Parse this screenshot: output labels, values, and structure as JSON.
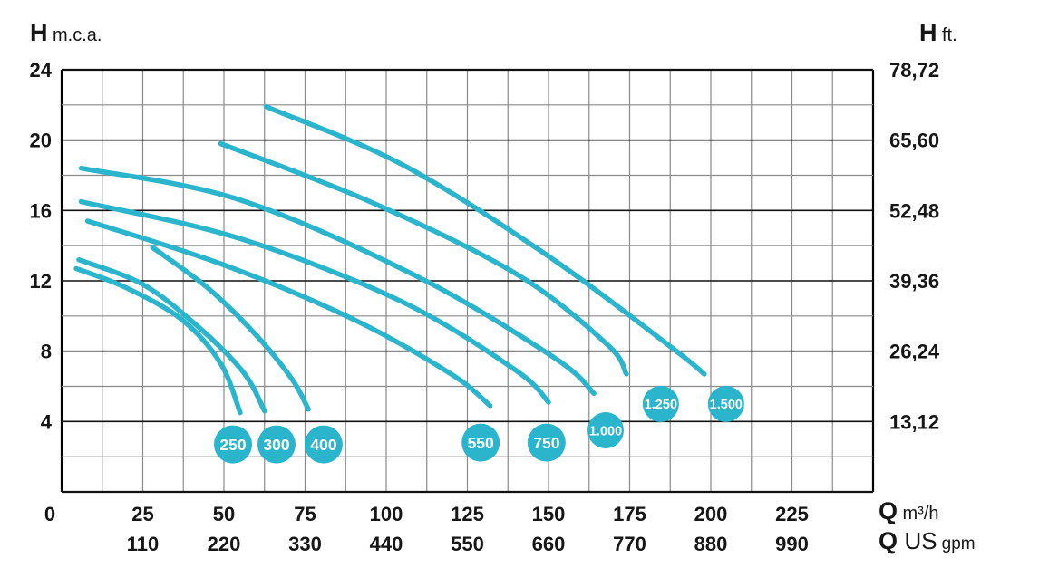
{
  "titles": {
    "left": {
      "symbol": "H",
      "unit": "m.c.a."
    },
    "right": {
      "symbol": "H",
      "unit": "ft."
    },
    "x_primary": {
      "symbol": "Q",
      "unit": "m³/h"
    },
    "x_secondary": {
      "symbol": "Q",
      "unit_main": "US",
      "unit_sub": "gpm"
    }
  },
  "chart_data": {
    "type": "line",
    "title": "",
    "xlabel": "Q (m³/h / US gpm)",
    "ylabel_left": "H (m.c.a.)",
    "ylabel_right": "H (ft.)",
    "xlim": [
      0,
      250
    ],
    "ylim": [
      0,
      24
    ],
    "grid": {
      "on": true,
      "x_step": 12.5,
      "y_step": 2,
      "y_major_step": 4
    },
    "legend_position": "none",
    "colors": {
      "curve": "#2ab5cd",
      "badge_fill": "#2ab5cd",
      "badge_text": "#ffffff",
      "grid_minor": "#8a8a8a",
      "grid_major": "#111111",
      "border": "#000000",
      "text": "#161616"
    },
    "x_ticks_m3h": [
      {
        "q": 0,
        "label": "0"
      },
      {
        "q": 25,
        "label": "25"
      },
      {
        "q": 50,
        "label": "50"
      },
      {
        "q": 75,
        "label": "75"
      },
      {
        "q": 100,
        "label": "100"
      },
      {
        "q": 125,
        "label": "125"
      },
      {
        "q": 150,
        "label": "150"
      },
      {
        "q": 175,
        "label": "175"
      },
      {
        "q": 200,
        "label": "200"
      },
      {
        "q": 225,
        "label": "225"
      }
    ],
    "x_ticks_usgpm": [
      {
        "q": 25,
        "label": "110"
      },
      {
        "q": 50,
        "label": "220"
      },
      {
        "q": 75,
        "label": "330"
      },
      {
        "q": 100,
        "label": "440"
      },
      {
        "q": 125,
        "label": "550"
      },
      {
        "q": 150,
        "label": "660"
      },
      {
        "q": 175,
        "label": "770"
      },
      {
        "q": 200,
        "label": "880"
      },
      {
        "q": 225,
        "label": "990"
      }
    ],
    "y_ticks_left": [
      {
        "h": 24,
        "label": "24"
      },
      {
        "h": 20,
        "label": "20"
      },
      {
        "h": 16,
        "label": "16"
      },
      {
        "h": 12,
        "label": "12"
      },
      {
        "h": 8,
        "label": "8"
      },
      {
        "h": 4,
        "label": "4"
      }
    ],
    "y_ticks_right": [
      {
        "h": 24,
        "label": "78,72"
      },
      {
        "h": 20,
        "label": "65,60"
      },
      {
        "h": 16,
        "label": "52,48"
      },
      {
        "h": 12,
        "label": "39,36"
      },
      {
        "h": 8,
        "label": "26,24"
      },
      {
        "h": 4,
        "label": "13,12"
      }
    ],
    "series": [
      {
        "name": "250",
        "points": [
          [
            4.5,
            12.7
          ],
          [
            20,
            11.6
          ],
          [
            37,
            9.8
          ],
          [
            49,
            7.3
          ],
          [
            55,
            4.5
          ]
        ]
      },
      {
        "name": "300",
        "points": [
          [
            5.3,
            13.2
          ],
          [
            25,
            11.8
          ],
          [
            42,
            9.4
          ],
          [
            56,
            6.8
          ],
          [
            62.5,
            4.6
          ]
        ]
      },
      {
        "name": "400",
        "points": [
          [
            28,
            13.9
          ],
          [
            45,
            11.6
          ],
          [
            60,
            8.9
          ],
          [
            71,
            6.4
          ],
          [
            76,
            4.7
          ]
        ]
      },
      {
        "name": "550",
        "points": [
          [
            8,
            15.4
          ],
          [
            50,
            12.9
          ],
          [
            90,
            9.8
          ],
          [
            120,
            6.7
          ],
          [
            132,
            4.9
          ]
        ]
      },
      {
        "name": "750",
        "points": [
          [
            6,
            16.5
          ],
          [
            55,
            14.4
          ],
          [
            105,
            10.8
          ],
          [
            140,
            6.9
          ],
          [
            150,
            5.1
          ]
        ]
      },
      {
        "name": "1.000",
        "points": [
          [
            6,
            18.4
          ],
          [
            55,
            16.6
          ],
          [
            110,
            12.2
          ],
          [
            152,
            7.6
          ],
          [
            164,
            5.6
          ]
        ]
      },
      {
        "name": "1.250",
        "points": [
          [
            49,
            19.8
          ],
          [
            95,
            16.5
          ],
          [
            140,
            12.4
          ],
          [
            168,
            8.4
          ],
          [
            174,
            6.7
          ]
        ]
      },
      {
        "name": "1.500",
        "points": [
          [
            63,
            21.9
          ],
          [
            105,
            18.6
          ],
          [
            150,
            13.4
          ],
          [
            188,
            8.2
          ],
          [
            198,
            6.7
          ]
        ]
      }
    ],
    "badges": [
      {
        "label": "250",
        "q": 52.8,
        "h": 2.7
      },
      {
        "label": "300",
        "q": 66.2,
        "h": 2.7
      },
      {
        "label": "400",
        "q": 80.7,
        "h": 2.7
      },
      {
        "label": "550",
        "q": 129.1,
        "h": 2.8
      },
      {
        "label": "750",
        "q": 149.4,
        "h": 2.8
      },
      {
        "label": "1.000",
        "q": 167.6,
        "h": 3.5
      },
      {
        "label": "1.250",
        "q": 184.6,
        "h": 5.0
      },
      {
        "label": "1.500",
        "q": 204.7,
        "h": 5.0
      }
    ]
  }
}
